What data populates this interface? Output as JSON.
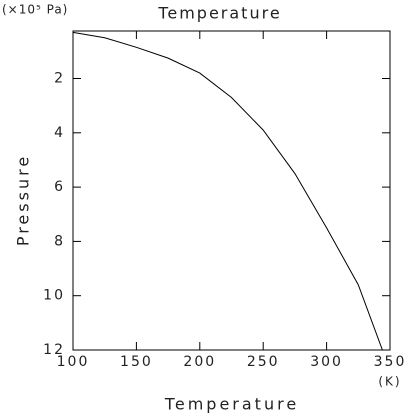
{
  "chart_data": {
    "type": "line",
    "title": "Temperature",
    "x_label": "Temperature",
    "x_unit": "(K)",
    "y_label": "Pressure",
    "y_unit": "(×10⁵ Pa)",
    "x": [
      100,
      125,
      150,
      175,
      200,
      225,
      250,
      275,
      300,
      325,
      344
    ],
    "series": [
      {
        "color": "#000000",
        "values": [
          0.3,
          0.5,
          0.85,
          1.25,
          1.8,
          2.7,
          3.9,
          5.5,
          7.5,
          9.6,
          12
        ]
      }
    ],
    "xlim": [
      100,
      350
    ],
    "xticks": [
      100,
      150,
      200,
      250,
      300,
      350
    ],
    "ylim": [
      0.25,
      12
    ],
    "yticks": [
      2,
      4,
      6,
      8,
      10,
      12
    ],
    "y_inverted": true,
    "grid": false
  }
}
